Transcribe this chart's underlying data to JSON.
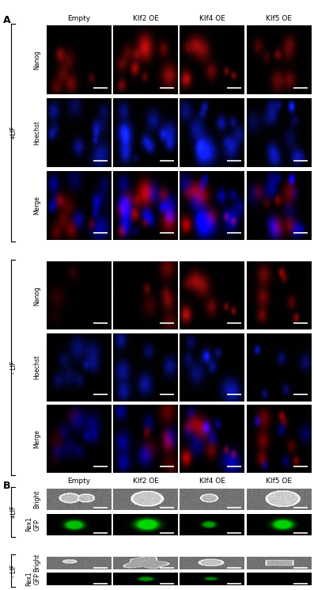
{
  "fig_label_A": "A",
  "fig_label_B": "B",
  "col_headers": [
    "Empty",
    "Klf2 OE",
    "Klf4 OE",
    "Klf5 OE"
  ],
  "row_labels_a": [
    "Nanog",
    "Hoechst",
    "Merge",
    "Nanog",
    "Hoechst",
    "Merge"
  ],
  "row_labels_b": [
    "Bright",
    "Rex1\nGFP",
    "Bright",
    "Rex1\nGFP"
  ],
  "lif_labels_a": [
    "+LIF",
    "- LIF"
  ],
  "lif_labels_b": [
    "+LIF",
    "- LIF"
  ],
  "background_color": "#ffffff",
  "text_color": "#000000",
  "header_fontsize": 6.5,
  "label_fontsize": 5.5,
  "fig_label_fontsize": 9
}
